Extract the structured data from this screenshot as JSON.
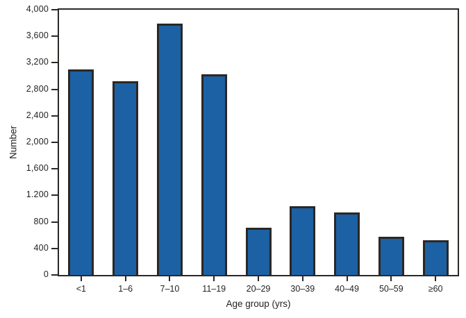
{
  "chart_data": {
    "type": "bar",
    "title": "",
    "xlabel": "Age group (yrs)",
    "ylabel": "Number",
    "categories": [
      "<1",
      "1–6",
      "7–10",
      "11–19",
      "20–29",
      "30–39",
      "40–49",
      "50–59",
      "≥60"
    ],
    "values": [
      3100,
      2920,
      3790,
      3030,
      710,
      1040,
      940,
      580,
      520
    ],
    "ylim": [
      0,
      4000
    ],
    "ytick_interval": 400,
    "ytick_labels": [
      "0",
      "400",
      "800",
      "1.200",
      "1,600",
      "2,000",
      "2,400",
      "2,800",
      "3,200",
      "3,600",
      "4,000"
    ],
    "grid": false,
    "legend": null,
    "bar_color": "#1c61a4",
    "bar_border_color": "#2b2724",
    "axis_color": "#2b2724",
    "text_color": "#231f20"
  }
}
